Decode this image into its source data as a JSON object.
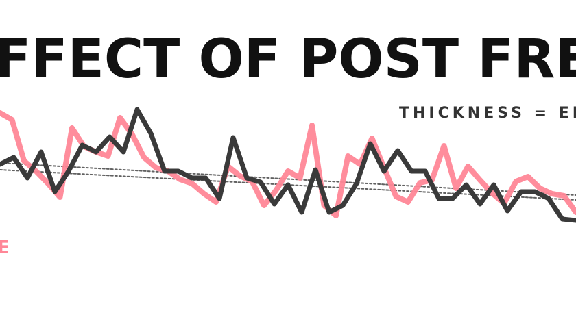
{
  "chart_data": {
    "type": "line",
    "title": "FFECT OF POST FREQUENCY ON",
    "annotation": "THICKNESS = ENG",
    "legend_fragment": "E",
    "xlim": [
      0,
      43
    ],
    "ylim": [
      0,
      466
    ],
    "grid": false,
    "series": [
      {
        "color": "#ff8797",
        "values": [
          165,
          175,
          235,
          250,
          268,
          288,
          187,
          214,
          222,
          228,
          172,
          196,
          230,
          245,
          250,
          262,
          268,
          283,
          295,
          243,
          257,
          265,
          300,
          278,
          250,
          260,
          183,
          300,
          315,
          228,
          240,
          202,
          245,
          287,
          295,
          267,
          263,
          213,
          275,
          243,
          263,
          282,
          297,
          265,
          258,
          275,
          283,
          286,
          310
        ]
      },
      {
        "color": "#3a3a3a",
        "values": [
          240,
          230,
          260,
          222,
          280,
          250,
          212,
          222,
          200,
          222,
          160,
          195,
          250,
          250,
          260,
          260,
          290,
          201,
          260,
          266,
          298,
          270,
          310,
          248,
          310,
          300,
          268,
          210,
          250,
          220,
          250,
          250,
          290,
          290,
          270,
          298,
          270,
          308,
          280,
          280,
          290,
          320,
          322
        ]
      },
      {
        "color": "#444444",
        "style": "dashed",
        "values": [
          238,
          285
        ]
      },
      {
        "color": "#444444",
        "style": "dashed",
        "values": [
          248,
          292
        ]
      }
    ]
  }
}
